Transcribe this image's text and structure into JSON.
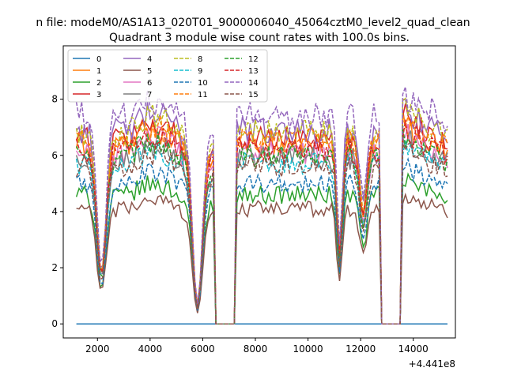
{
  "suptitle": "n file: modeM0/AS1A13_020T01_9000006040_45064cztM0_level2_quad_clean",
  "chart_data": {
    "type": "line",
    "title": "Quadrant 3 module wise count rates with 100.0s bins.",
    "xlabel": "",
    "ylabel": "",
    "x_offset_label": "+4.441e8",
    "xlim": [
      700,
      15600
    ],
    "ylim": [
      -0.5,
      9.9
    ],
    "xticks": [
      2000,
      4000,
      6000,
      8000,
      10000,
      12000,
      14000
    ],
    "xtick_labels": [
      "2000",
      "4000",
      "6000",
      "8000",
      "10000",
      "12000",
      "14000"
    ],
    "yticks": [
      0,
      2,
      4,
      6,
      8
    ],
    "ytick_labels": [
      "0",
      "2",
      "4",
      "6",
      "8"
    ],
    "grid": false,
    "legend_position": "top-left",
    "legend_columns": 4,
    "x_range": [
      1200,
      15300
    ],
    "x_step": 100,
    "gaps": [
      [
        6500,
        7250
      ],
      [
        12750,
        13550
      ]
    ],
    "series": [
      {
        "name": "0",
        "color": "#1f77b4",
        "dash": false,
        "level": 0.0
      },
      {
        "name": "1",
        "color": "#ff7f0e",
        "dash": false,
        "level": 6.4
      },
      {
        "name": "2",
        "color": "#2ca02c",
        "dash": false,
        "level": 4.6
      },
      {
        "name": "3",
        "color": "#d62728",
        "dash": false,
        "level": 6.6
      },
      {
        "name": "4",
        "color": "#9467bd",
        "dash": false,
        "level": 6.9
      },
      {
        "name": "5",
        "color": "#8c564b",
        "dash": false,
        "level": 4.1
      },
      {
        "name": "6",
        "color": "#e377c2",
        "dash": false,
        "level": 6.1
      },
      {
        "name": "7",
        "color": "#7f7f7f",
        "dash": false,
        "level": 5.9
      },
      {
        "name": "8",
        "color": "#bcbd22",
        "dash": true,
        "level": 6.8
      },
      {
        "name": "9",
        "color": "#17becf",
        "dash": true,
        "level": 5.7
      },
      {
        "name": "10",
        "color": "#1f77b4",
        "dash": true,
        "level": 5.0
      },
      {
        "name": "11",
        "color": "#ff7f0e",
        "dash": true,
        "level": 6.5
      },
      {
        "name": "12",
        "color": "#2ca02c",
        "dash": true,
        "level": 6.0
      },
      {
        "name": "13",
        "color": "#d62728",
        "dash": true,
        "level": 6.2
      },
      {
        "name": "14",
        "color": "#9467bd",
        "dash": true,
        "level": 7.4
      },
      {
        "name": "15",
        "color": "#8c564b",
        "dash": true,
        "level": 5.6
      }
    ]
  }
}
